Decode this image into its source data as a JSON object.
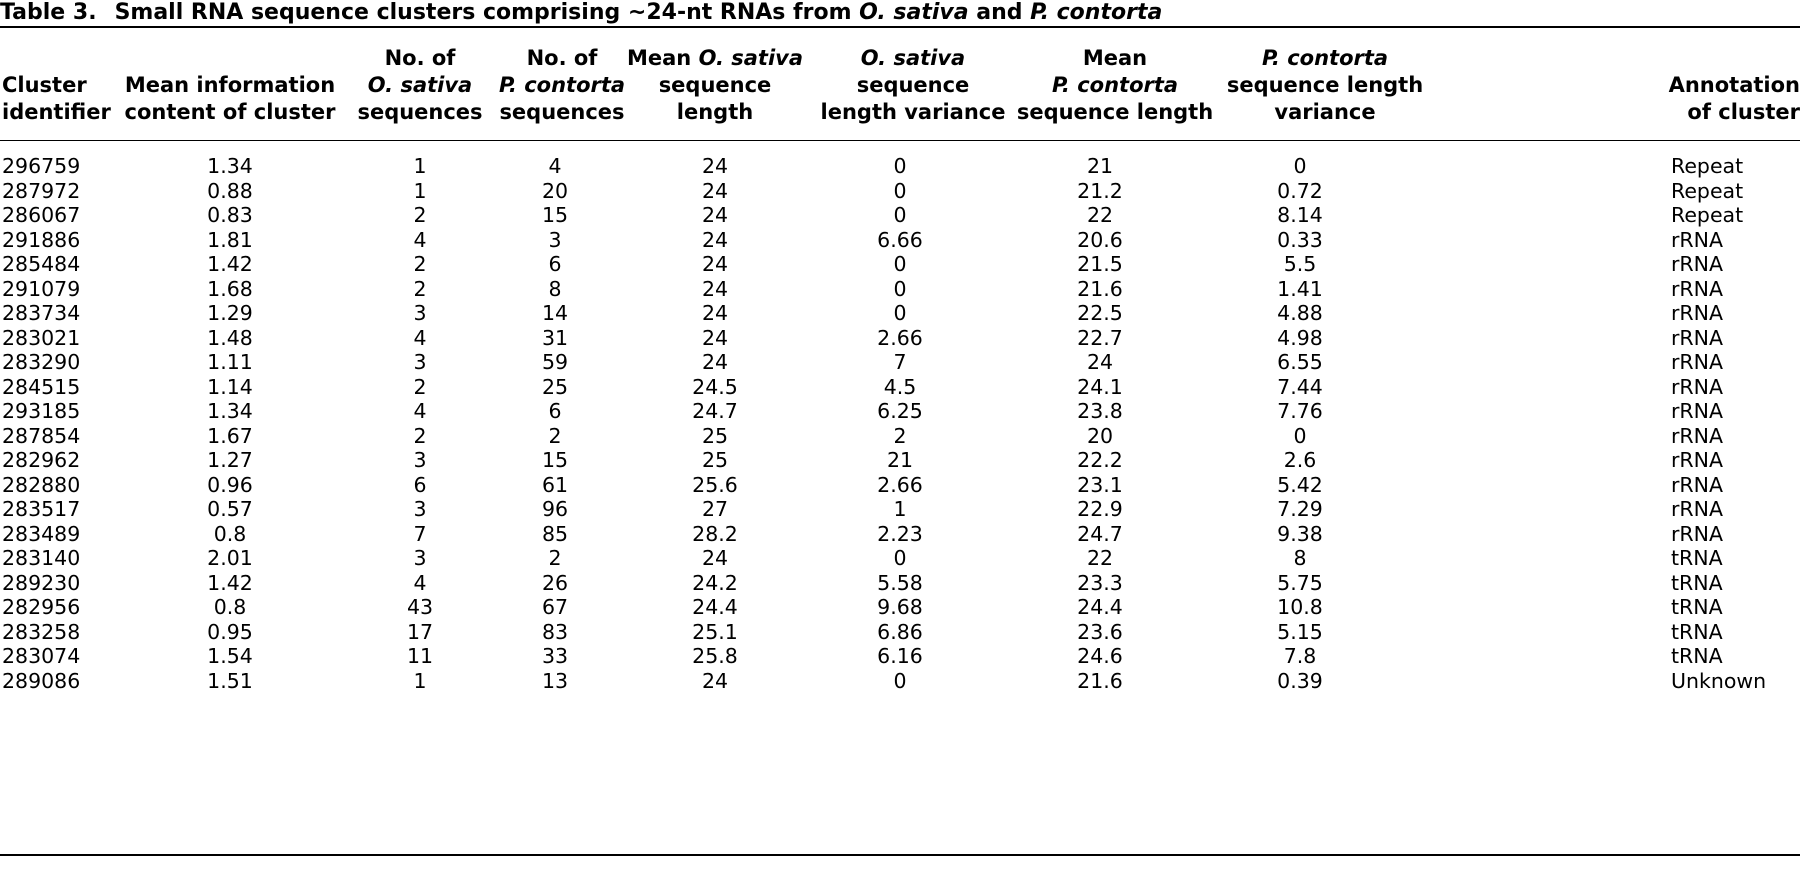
{
  "caption": {
    "label": "Table 3.",
    "title_parts": [
      {
        "text": "Small RNA sequence clusters comprising ~24-nt RNAs from ",
        "italic": false
      },
      {
        "text": "O. sativa",
        "italic": true
      },
      {
        "text": " and ",
        "italic": false
      },
      {
        "text": "P. contorta",
        "italic": true
      }
    ]
  },
  "columns": [
    {
      "key": "id",
      "lines": [
        [
          {
            "t": "Cluster"
          }
        ],
        [
          {
            "t": "identifier"
          }
        ]
      ]
    },
    {
      "key": "info",
      "lines": [
        [
          {
            "t": "Mean information"
          }
        ],
        [
          {
            "t": "content of cluster"
          }
        ]
      ]
    },
    {
      "key": "os_n",
      "lines": [
        [
          {
            "t": "No. of"
          }
        ],
        [
          {
            "t": "O. sativa",
            "i": true
          }
        ],
        [
          {
            "t": "sequences"
          }
        ]
      ]
    },
    {
      "key": "pc_n",
      "lines": [
        [
          {
            "t": "No. of"
          }
        ],
        [
          {
            "t": "P. contorta",
            "i": true
          }
        ],
        [
          {
            "t": "sequences"
          }
        ]
      ]
    },
    {
      "key": "os_len",
      "lines": [
        [
          {
            "t": "Mean "
          },
          {
            "t": "O. sativa",
            "i": true
          }
        ],
        [
          {
            "t": "sequence"
          }
        ],
        [
          {
            "t": "length"
          }
        ]
      ]
    },
    {
      "key": "os_var",
      "lines": [
        [
          {
            "t": "O. sativa",
            "i": true
          }
        ],
        [
          {
            "t": "sequence"
          }
        ],
        [
          {
            "t": "length variance"
          }
        ]
      ]
    },
    {
      "key": "pc_len",
      "lines": [
        [
          {
            "t": "Mean"
          }
        ],
        [
          {
            "t": "P. contorta",
            "i": true
          }
        ],
        [
          {
            "t": "sequence length"
          }
        ]
      ]
    },
    {
      "key": "pc_var",
      "lines": [
        [
          {
            "t": "P. contorta",
            "i": true
          }
        ],
        [
          {
            "t": "sequence length"
          }
        ],
        [
          {
            "t": "variance"
          }
        ]
      ]
    },
    {
      "key": "annot",
      "lines": [
        [
          {
            "t": "Annotation"
          }
        ],
        [
          {
            "t": "of cluster"
          }
        ]
      ]
    }
  ],
  "rows": [
    [
      "296759",
      "1.34",
      "1",
      "4",
      "24",
      "0",
      "21",
      "0",
      "Repeat"
    ],
    [
      "287972",
      "0.88",
      "1",
      "20",
      "24",
      "0",
      "21.2",
      "0.72",
      "Repeat"
    ],
    [
      "286067",
      "0.83",
      "2",
      "15",
      "24",
      "0",
      "22",
      "8.14",
      "Repeat"
    ],
    [
      "291886",
      "1.81",
      "4",
      "3",
      "24",
      "6.66",
      "20.6",
      "0.33",
      "rRNA"
    ],
    [
      "285484",
      "1.42",
      "2",
      "6",
      "24",
      "0",
      "21.5",
      "5.5",
      "rRNA"
    ],
    [
      "291079",
      "1.68",
      "2",
      "8",
      "24",
      "0",
      "21.6",
      "1.41",
      "rRNA"
    ],
    [
      "283734",
      "1.29",
      "3",
      "14",
      "24",
      "0",
      "22.5",
      "4.88",
      "rRNA"
    ],
    [
      "283021",
      "1.48",
      "4",
      "31",
      "24",
      "2.66",
      "22.7",
      "4.98",
      "rRNA"
    ],
    [
      "283290",
      "1.11",
      "3",
      "59",
      "24",
      "7",
      "24",
      "6.55",
      "rRNA"
    ],
    [
      "284515",
      "1.14",
      "2",
      "25",
      "24.5",
      "4.5",
      "24.1",
      "7.44",
      "rRNA"
    ],
    [
      "293185",
      "1.34",
      "4",
      "6",
      "24.7",
      "6.25",
      "23.8",
      "7.76",
      "rRNA"
    ],
    [
      "287854",
      "1.67",
      "2",
      "2",
      "25",
      "2",
      "20",
      "0",
      "rRNA"
    ],
    [
      "282962",
      "1.27",
      "3",
      "15",
      "25",
      "21",
      "22.2",
      "2.6",
      "rRNA"
    ],
    [
      "282880",
      "0.96",
      "6",
      "61",
      "25.6",
      "2.66",
      "23.1",
      "5.42",
      "rRNA"
    ],
    [
      "283517",
      "0.57",
      "3",
      "96",
      "27",
      "1",
      "22.9",
      "7.29",
      "rRNA"
    ],
    [
      "283489",
      "0.8",
      "7",
      "85",
      "28.2",
      "2.23",
      "24.7",
      "9.38",
      "rRNA"
    ],
    [
      "283140",
      "2.01",
      "3",
      "2",
      "24",
      "0",
      "22",
      "8",
      "tRNA"
    ],
    [
      "289230",
      "1.42",
      "4",
      "26",
      "24.2",
      "5.58",
      "23.3",
      "5.75",
      "tRNA"
    ],
    [
      "282956",
      "0.8",
      "43",
      "67",
      "24.4",
      "9.68",
      "24.4",
      "10.8",
      "tRNA"
    ],
    [
      "283258",
      "0.95",
      "17",
      "83",
      "25.1",
      "6.86",
      "23.6",
      "5.15",
      "tRNA"
    ],
    [
      "283074",
      "1.54",
      "11",
      "33",
      "25.8",
      "6.16",
      "24.6",
      "7.8",
      "tRNA"
    ],
    [
      "289086",
      "1.51",
      "1",
      "13",
      "24",
      "0",
      "21.6",
      "0.39",
      "Unknown"
    ]
  ]
}
